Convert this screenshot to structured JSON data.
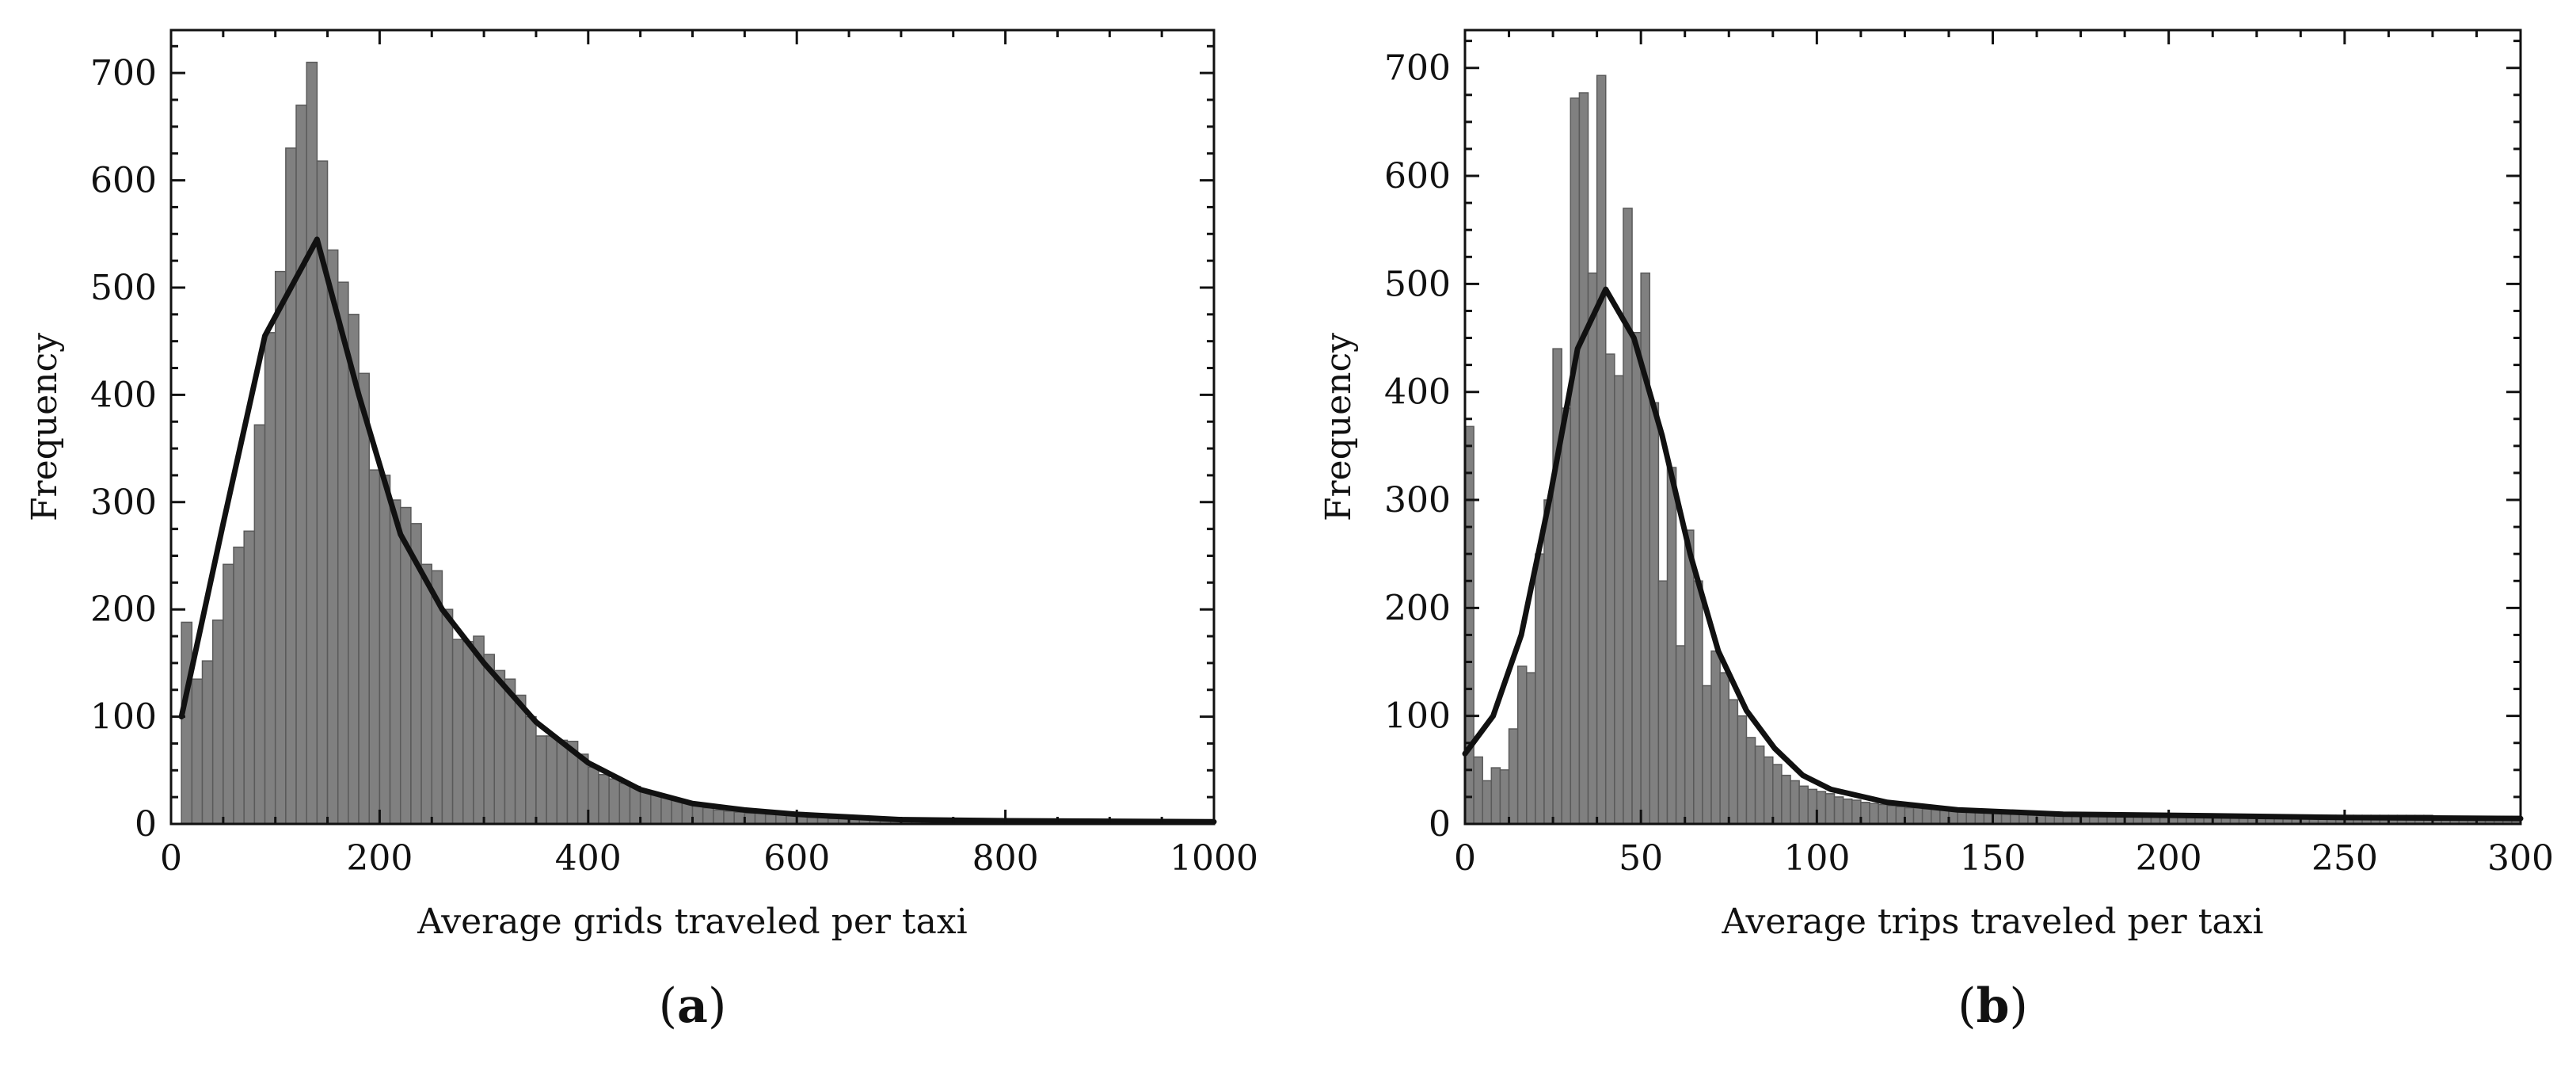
{
  "chart_data": [
    {
      "id": "a",
      "type": "bar",
      "caption_letter": "a",
      "xlabel": "Average grids traveled per taxi",
      "ylabel": "Frequency",
      "xlim": [
        0,
        1000
      ],
      "ylim": [
        0,
        740
      ],
      "xticks": [
        0,
        200,
        400,
        600,
        800,
        1000
      ],
      "yticks": [
        0,
        100,
        200,
        300,
        400,
        500,
        600,
        700
      ],
      "grid": false,
      "bin_width": 10,
      "bin_start": 10,
      "histogram": [
        188,
        135,
        152,
        190,
        242,
        258,
        273,
        372,
        458,
        515,
        630,
        670,
        710,
        618,
        535,
        505,
        475,
        420,
        330,
        325,
        302,
        295,
        280,
        242,
        236,
        200,
        172,
        170,
        175,
        158,
        143,
        135,
        120,
        100,
        82,
        82,
        78,
        77,
        65,
        53,
        46,
        42,
        38,
        35,
        30,
        27,
        26,
        23,
        20,
        17,
        15,
        13,
        12,
        11,
        10,
        10,
        9,
        9,
        8,
        7,
        6,
        6,
        5,
        5,
        4,
        4,
        4,
        3,
        3,
        3,
        3,
        3,
        2,
        2,
        2,
        2,
        2,
        2,
        2,
        2,
        2,
        2,
        2,
        2,
        2,
        1,
        1,
        1,
        1,
        1
      ],
      "series": [
        {
          "name": "",
          "type": "line",
          "x": [
            10,
            50,
            90,
            140,
            180,
            220,
            260,
            300,
            350,
            400,
            450,
            500,
            550,
            600,
            700,
            800,
            1000
          ],
          "y": [
            100,
            280,
            455,
            545,
            400,
            270,
            200,
            150,
            95,
            57,
            32,
            19,
            13,
            9,
            4,
            3,
            2
          ]
        }
      ]
    },
    {
      "id": "b",
      "type": "bar",
      "caption_letter": "b",
      "xlabel": "Average trips traveled per taxi",
      "ylabel": "Frequency",
      "xlim": [
        0,
        300
      ],
      "ylim": [
        0,
        735
      ],
      "xticks": [
        0,
        50,
        100,
        150,
        200,
        250,
        300
      ],
      "yticks": [
        0,
        100,
        200,
        300,
        400,
        500,
        600,
        700
      ],
      "grid": false,
      "bin_width": 2.5,
      "bin_start": 0,
      "histogram": [
        368,
        62,
        40,
        52,
        50,
        88,
        146,
        140,
        250,
        300,
        440,
        385,
        672,
        677,
        510,
        693,
        435,
        415,
        570,
        455,
        510,
        390,
        225,
        330,
        165,
        272,
        225,
        128,
        160,
        140,
        115,
        100,
        80,
        72,
        62,
        55,
        45,
        40,
        35,
        32,
        30,
        28,
        25,
        23,
        22,
        20,
        19,
        18,
        17,
        16,
        15,
        15,
        14,
        14,
        13,
        13,
        12,
        12,
        12,
        11,
        11,
        11,
        10,
        10,
        10,
        10,
        10,
        10,
        9,
        9,
        9,
        9,
        9,
        9,
        9,
        9,
        9,
        8,
        8,
        8,
        8,
        8,
        8,
        8,
        8,
        8,
        8,
        8,
        8,
        8,
        8,
        8,
        8,
        8,
        8,
        8,
        8,
        8,
        8,
        8,
        8,
        8,
        8,
        8,
        8,
        8,
        8,
        8,
        8,
        8,
        7,
        7,
        7,
        7,
        7,
        7,
        7,
        7,
        7,
        7
      ],
      "series": [
        {
          "name": "",
          "type": "line",
          "x": [
            0,
            8,
            16,
            24,
            32,
            40,
            48,
            56,
            64,
            72,
            80,
            88,
            96,
            104,
            120,
            140,
            170,
            200,
            250,
            300
          ],
          "y": [
            65,
            100,
            175,
            300,
            440,
            495,
            450,
            360,
            250,
            160,
            105,
            70,
            45,
            32,
            20,
            13,
            9,
            8,
            6,
            5
          ]
        }
      ]
    }
  ]
}
